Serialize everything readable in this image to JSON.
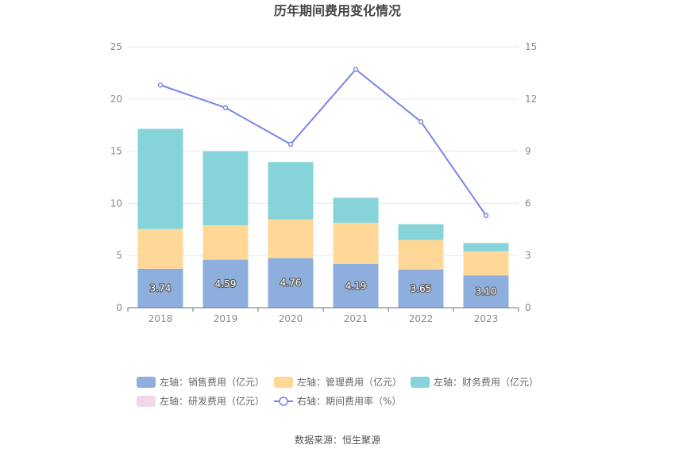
{
  "chart_data": {
    "type": "bar",
    "title": "历年期间费用变化情况",
    "categories": [
      "2018",
      "2019",
      "2020",
      "2021",
      "2022",
      "2023"
    ],
    "series": [
      {
        "name": "左轴：销售费用（亿元）",
        "type": "bar",
        "axis": "left",
        "color": "#8eaedd",
        "values": [
          3.74,
          4.59,
          4.76,
          4.19,
          3.65,
          3.1
        ],
        "labels": [
          "3.74",
          "4.59",
          "4.76",
          "4.19",
          "3.65",
          "3.10"
        ]
      },
      {
        "name": "左轴：管理费用（亿元）",
        "type": "bar",
        "axis": "left",
        "color": "#ffd898",
        "values": [
          3.8,
          3.3,
          3.7,
          3.95,
          2.85,
          2.3
        ]
      },
      {
        "name": "左轴：财务费用（亿元）",
        "type": "bar",
        "axis": "left",
        "color": "#86d4d9",
        "values": [
          9.6,
          7.1,
          5.5,
          2.4,
          1.5,
          0.8
        ]
      },
      {
        "name": "左轴：研发费用（亿元）",
        "type": "bar",
        "axis": "left",
        "color": "#f2d6ea",
        "values": [
          0,
          0,
          0,
          0,
          0,
          0
        ]
      },
      {
        "name": "右轴：期间费用率（%）",
        "type": "line",
        "axis": "right",
        "color": "#7b84e8",
        "values": [
          12.8,
          11.5,
          9.4,
          13.7,
          10.7,
          5.3
        ]
      }
    ],
    "y_left": {
      "ylim": [
        0,
        25
      ],
      "ticks": [
        "0",
        "5",
        "10",
        "15",
        "20",
        "25"
      ]
    },
    "y_right": {
      "ylim": [
        0,
        15
      ],
      "ticks": [
        "0",
        "3",
        "6",
        "9",
        "12",
        "15"
      ]
    },
    "grid": true,
    "legend": "bottom"
  },
  "source": "数据来源：恒生聚源"
}
